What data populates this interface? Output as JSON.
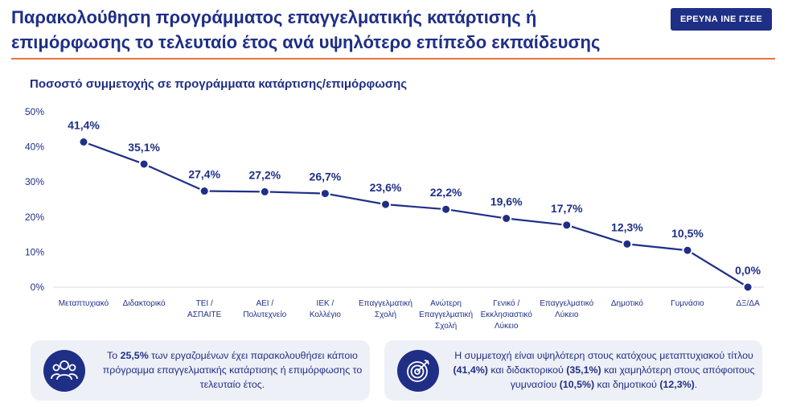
{
  "header": {
    "title": "Παρακολούθηση προγράμματος επαγγελματικής κατάρτισης ή επιμόρφωσης το τελευταίο έτος ανά υψηλότερο επίπεδο εκπαίδευσης",
    "badge": "ΕΡΕΥΝΑ ΙΝΕ ΓΣΕΕ"
  },
  "colors": {
    "primary": "#1f2f86",
    "accent": "#e8743b",
    "card_bg": "#eef0f7"
  },
  "chart_data": {
    "type": "line",
    "title": "Ποσοστό συμμετοχής σε προγράμματα κατάρτισης/επιμόρφωσης",
    "categories": [
      [
        "Μεταπτυχιακό"
      ],
      [
        "Διδακτορικό"
      ],
      [
        "ΤΕΙ /",
        "ΑΣΠΑΙΤΕ"
      ],
      [
        "ΑΕΙ /",
        "Πολυτεχνείο"
      ],
      [
        "ΙΕΚ /",
        "Κολλέγιο"
      ],
      [
        "Επαγγελματική",
        "Σχολή"
      ],
      [
        "Ανώτερη",
        "Επαγγελματική",
        "Σχολή"
      ],
      [
        "Γενικό /",
        "Εκκλησιαστικό",
        "Λύκειο"
      ],
      [
        "Επαγγελματικό",
        "Λύκειο"
      ],
      [
        "Δημοτικό"
      ],
      [
        "Γυμνάσιο"
      ],
      [
        "ΔΞ/ΔΑ"
      ]
    ],
    "values": [
      41.4,
      35.1,
      27.4,
      27.2,
      26.7,
      23.6,
      22.2,
      19.6,
      17.7,
      12.3,
      10.5,
      0.0
    ],
    "value_labels": [
      "41,4%",
      "35,1%",
      "27,4%",
      "27,2%",
      "26,7%",
      "23,6%",
      "22,2%",
      "19,6%",
      "17,7%",
      "12,3%",
      "10,5%",
      "0,0%"
    ],
    "ylim": [
      0,
      50
    ],
    "yticks": [
      "0%",
      "10%",
      "20%",
      "30%",
      "40%",
      "50%"
    ],
    "grid": false,
    "xlabel": "",
    "ylabel": ""
  },
  "cards": {
    "left": {
      "icon": "people-group-icon",
      "pre": "Το ",
      "highlight": "25,5%",
      "post": " των εργαζομένων έχει παρακολουθήσει κάποιο πρόγραμμα επαγγελματικής κατάρτισης ή επιμόρφωσης το τελευταίο έτος."
    },
    "right": {
      "icon": "target-icon",
      "t1": "Η συμμετοχή είναι υψηλότερη στους κατόχους μεταπτυχιακού τίτλου ",
      "b1": "(41,4%)",
      "t2": " και διδακτορικού ",
      "b2": "(35,1%)",
      "t3": " και χαμηλότερη στους απόφοιτους γυμνασίου ",
      "b3": "(10,5%)",
      "t4": " και δημοτικού ",
      "b4": "(12,3%)",
      "t5": "."
    }
  }
}
